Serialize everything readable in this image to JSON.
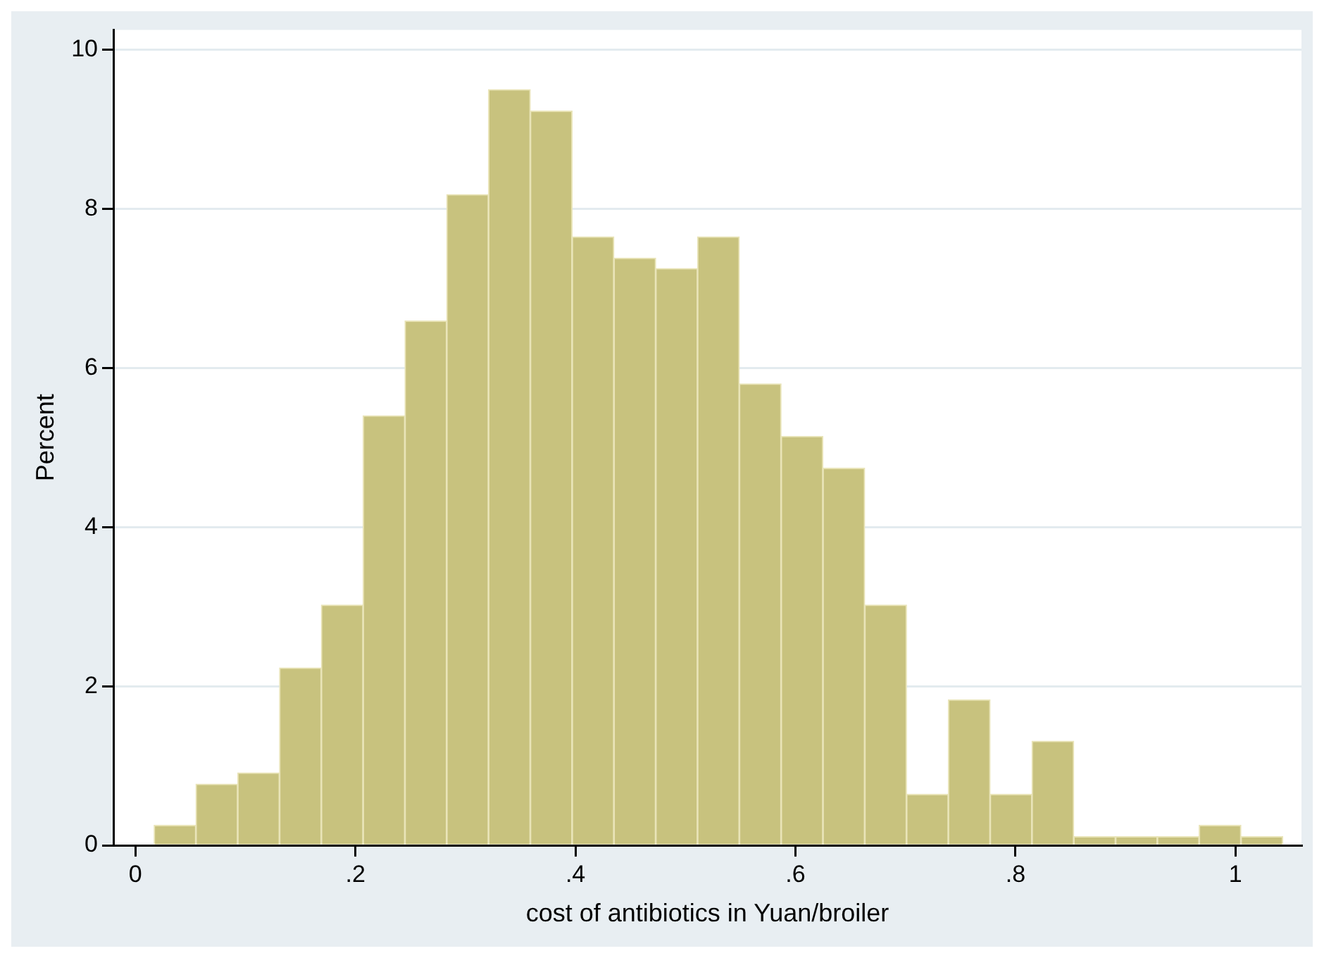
{
  "chart_data": {
    "type": "histogram",
    "xlabel": "cost of antibiotics in Yuan/broiler",
    "ylabel": "Percent",
    "bins": [
      0.017,
      0.055,
      0.093,
      0.131,
      0.169,
      0.207,
      0.245,
      0.283,
      0.321,
      0.359,
      0.397,
      0.435,
      0.473,
      0.511,
      0.549,
      0.587,
      0.625,
      0.663,
      0.701,
      0.739,
      0.777,
      0.815,
      0.853,
      0.891,
      0.929,
      0.967,
      1.005,
      1.043
    ],
    "values": [
      0.25,
      0.77,
      0.91,
      2.23,
      3.02,
      5.4,
      6.59,
      8.18,
      9.5,
      9.23,
      7.65,
      7.38,
      7.25,
      7.65,
      5.8,
      5.14,
      4.74,
      3.02,
      0.64,
      1.83,
      0.64,
      1.31,
      0.11,
      0.11,
      0.11,
      0.25,
      0.11
    ],
    "color": "#c8c27e",
    "xlim": [
      -0.02,
      1.06
    ],
    "ylim": [
      0,
      10.25
    ],
    "xticks": [
      0,
      {
        "value": 0.2,
        "label": ".2"
      },
      {
        "value": 0.4,
        "label": ".4"
      },
      {
        "value": 0.6,
        "label": ".6"
      },
      {
        "value": 0.8,
        "label": ".8"
      },
      1
    ],
    "yticks": [
      0,
      2,
      4,
      6,
      8,
      10
    ],
    "grid": "y",
    "legend": false
  }
}
